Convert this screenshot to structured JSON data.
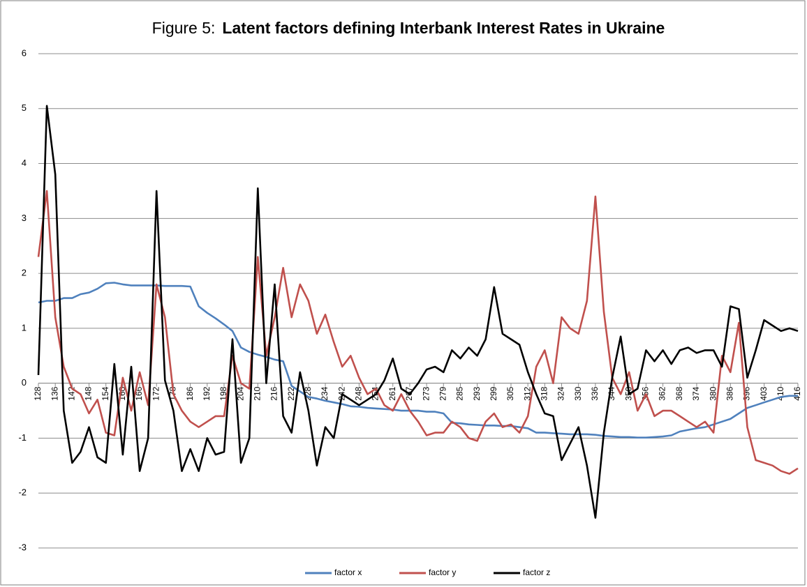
{
  "chart_data": {
    "type": "line",
    "title": [
      "Figure 5:",
      "Latent factors defining Interbank Interest Rates in Ukraine"
    ],
    "categories": [
      "128",
      null,
      "136",
      null,
      "142",
      null,
      "148",
      null,
      "154",
      null,
      "160",
      null,
      "166",
      null,
      "172",
      null,
      "178",
      null,
      "186",
      null,
      "192",
      null,
      "198",
      null,
      "204",
      null,
      "210",
      null,
      "216",
      null,
      "222",
      null,
      "228",
      null,
      "234",
      null,
      "242",
      null,
      "248",
      null,
      "254",
      null,
      "261",
      null,
      "267",
      null,
      "273",
      null,
      "279",
      null,
      "285",
      null,
      "293",
      null,
      "299",
      null,
      "305",
      null,
      "312",
      null,
      "318",
      null,
      "324",
      null,
      "330",
      null,
      "336",
      null,
      "344",
      null,
      "350",
      null,
      "356",
      null,
      "362",
      null,
      "368",
      null,
      "374",
      null,
      "380",
      null,
      "386",
      null,
      "396",
      null,
      "403",
      null,
      "410",
      null,
      "416"
    ],
    "series": [
      {
        "name": "factor x",
        "color": "#4f81bd",
        "values": [
          1.47,
          1.5,
          1.5,
          1.55,
          1.55,
          1.62,
          1.65,
          1.72,
          1.82,
          1.83,
          1.8,
          1.78,
          1.78,
          1.78,
          1.78,
          1.77,
          1.77,
          1.77,
          1.76,
          1.4,
          1.28,
          1.18,
          1.07,
          0.95,
          0.65,
          0.57,
          0.52,
          0.48,
          0.43,
          0.4,
          -0.05,
          -0.15,
          -0.25,
          -0.28,
          -0.32,
          -0.35,
          -0.38,
          -0.42,
          -0.43,
          -0.45,
          -0.46,
          -0.47,
          -0.48,
          -0.5,
          -0.5,
          -0.5,
          -0.52,
          -0.52,
          -0.55,
          -0.72,
          -0.73,
          -0.75,
          -0.76,
          -0.77,
          -0.77,
          -0.78,
          -0.78,
          -0.8,
          -0.82,
          -0.9,
          -0.9,
          -0.91,
          -0.92,
          -0.93,
          -0.93,
          -0.93,
          -0.94,
          -0.96,
          -0.97,
          -0.98,
          -0.98,
          -0.99,
          -0.99,
          -0.98,
          -0.97,
          -0.95,
          -0.88,
          -0.85,
          -0.82,
          -0.8,
          -0.75,
          -0.7,
          -0.65,
          -0.55,
          -0.45,
          -0.4,
          -0.35,
          -0.3,
          -0.25,
          -0.23,
          -0.23
        ]
      },
      {
        "name": "factor y",
        "color": "#c0504d",
        "values": [
          2.3,
          3.5,
          1.2,
          0.3,
          -0.1,
          -0.2,
          -0.55,
          -0.3,
          -0.9,
          -0.95,
          0.1,
          -0.5,
          0.2,
          -0.4,
          1.8,
          1.2,
          -0.2,
          -0.5,
          -0.7,
          -0.8,
          -0.7,
          -0.6,
          -0.6,
          0.5,
          0.0,
          -0.1,
          2.3,
          0.5,
          1.2,
          2.1,
          1.2,
          1.8,
          1.5,
          0.9,
          1.25,
          0.75,
          0.3,
          0.5,
          0.1,
          -0.2,
          -0.1,
          -0.4,
          -0.5,
          -0.2,
          -0.5,
          -0.7,
          -0.95,
          -0.9,
          -0.9,
          -0.7,
          -0.8,
          -1.0,
          -1.05,
          -0.7,
          -0.55,
          -0.8,
          -0.75,
          -0.9,
          -0.6,
          0.3,
          0.6,
          0.0,
          1.2,
          1.0,
          0.9,
          1.5,
          3.4,
          1.3,
          0.1,
          -0.2,
          0.2,
          -0.5,
          -0.2,
          -0.6,
          -0.5,
          -0.5,
          -0.6,
          -0.7,
          -0.8,
          -0.7,
          -0.9,
          0.5,
          0.2,
          1.1,
          -0.8,
          -1.4,
          -1.45,
          -1.5,
          -1.6,
          -1.65,
          -1.55
        ]
      },
      {
        "name": "factor z",
        "color": "#000000",
        "values": [
          0.15,
          5.05,
          3.8,
          -0.5,
          -1.45,
          -1.25,
          -0.8,
          -1.35,
          -1.45,
          0.35,
          -1.3,
          0.3,
          -1.6,
          -1.0,
          3.5,
          0.05,
          -0.5,
          -1.6,
          -1.2,
          -1.6,
          -1.0,
          -1.3,
          -1.25,
          0.8,
          -1.45,
          -1.0,
          3.55,
          0.0,
          1.8,
          -0.6,
          -0.9,
          0.2,
          -0.5,
          -1.5,
          -0.8,
          -1.0,
          -0.2,
          -0.3,
          -0.4,
          -0.3,
          -0.2,
          0.05,
          0.45,
          -0.1,
          -0.2,
          0.0,
          0.25,
          0.3,
          0.2,
          0.6,
          0.45,
          0.65,
          0.5,
          0.8,
          1.75,
          0.9,
          0.8,
          0.7,
          0.2,
          -0.2,
          -0.55,
          -0.6,
          -1.4,
          -1.1,
          -0.8,
          -1.5,
          -2.45,
          -0.9,
          0.1,
          0.85,
          -0.2,
          -0.1,
          0.6,
          0.4,
          0.6,
          0.35,
          0.6,
          0.65,
          0.55,
          0.6,
          0.6,
          0.3,
          1.4,
          1.35,
          0.1,
          0.6,
          1.15,
          1.05,
          0.95,
          1.0,
          0.95
        ]
      }
    ],
    "ylim": [
      -3,
      6
    ],
    "yticks": [
      -3,
      -2,
      -1,
      0,
      1,
      2,
      3,
      4,
      5,
      6
    ],
    "grid": true,
    "legend": "bottom"
  }
}
